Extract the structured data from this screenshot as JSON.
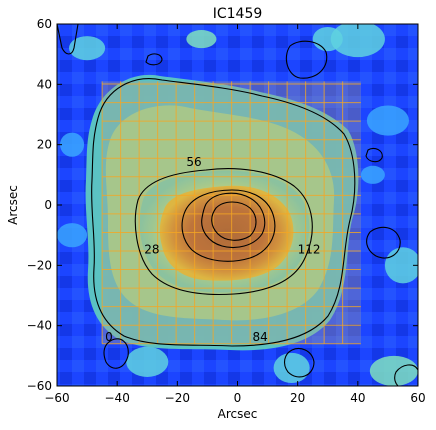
{
  "chart_data": {
    "type": "heatmap",
    "title": "IC1459",
    "xlabel": "Arcsec",
    "ylabel": "Arcsec",
    "xlim": [
      -60,
      60
    ],
    "ylim": [
      -60,
      60
    ],
    "xticks": [
      -60,
      -40,
      -20,
      0,
      20,
      40,
      60
    ],
    "yticks": [
      -60,
      -40,
      -20,
      0,
      20,
      40,
      60
    ],
    "colormap": "jet",
    "background_color": "#1f3cff",
    "grid_overlay": {
      "x_range": [
        -45,
        41
      ],
      "y_range": [
        -46,
        41
      ],
      "cell_size": 6.15,
      "line_color": "#f5a623",
      "tint": "#b0a090",
      "labels": [
        {
          "text": "56",
          "x": -17,
          "y": 13
        },
        {
          "text": "28",
          "x": -31,
          "y": -16
        },
        {
          "text": "112",
          "x": 20,
          "y": -16
        },
        {
          "text": "0",
          "x": -44,
          "y": -45
        },
        {
          "text": "84",
          "x": 5,
          "y": -45
        }
      ]
    },
    "emission": {
      "center": [
        -2,
        -3
      ],
      "peak_color": "#c85a10",
      "mid_color": "#f5b515",
      "outer_color": "#7fd8a0"
    },
    "contour_levels": 4
  }
}
